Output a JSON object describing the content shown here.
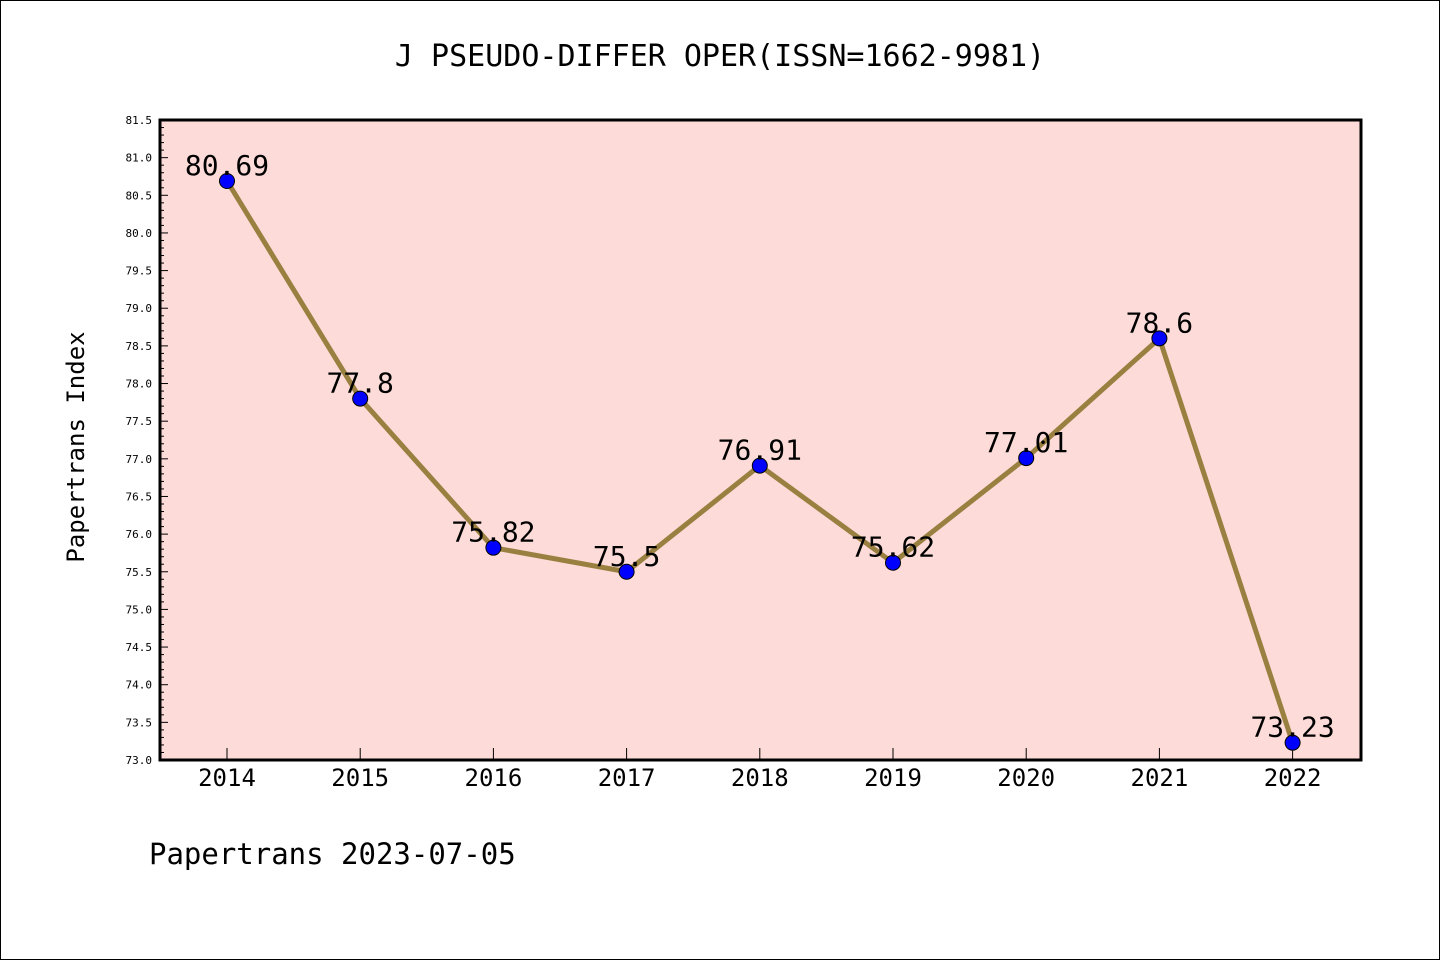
{
  "footer_text": "Papertrans 2023-07-05",
  "chart_data": {
    "type": "line",
    "title": "J PSEUDO-DIFFER OPER(ISSN=1662-9981)",
    "xlabel": "",
    "ylabel": "Papertrans Index",
    "categories": [
      "2014",
      "2015",
      "2016",
      "2017",
      "2018",
      "2019",
      "2020",
      "2021",
      "2022"
    ],
    "series": [
      {
        "values": [
          80.69,
          77.8,
          75.82,
          75.5,
          76.91,
          75.62,
          77.01,
          78.6,
          73.23
        ],
        "data_labels": [
          "80.69",
          "77.8",
          "75.82",
          "75.5",
          "76.91",
          "75.62",
          "77.01",
          "78.6",
          "73.23"
        ]
      }
    ],
    "ylim": [
      73.0,
      81.5
    ],
    "y_ticks": [
      "73.0",
      "73.5",
      "74.0",
      "74.5",
      "75.0",
      "75.5",
      "76.0",
      "76.5",
      "77.0",
      "77.5",
      "78.0",
      "78.5",
      "79.0",
      "79.5",
      "80.0",
      "80.5",
      "81.0",
      "81.5"
    ],
    "grid": false,
    "legend": "none",
    "colors": {
      "plot_background": "#fddbd8",
      "line": "#9a8040",
      "marker": "#0000ff"
    }
  }
}
